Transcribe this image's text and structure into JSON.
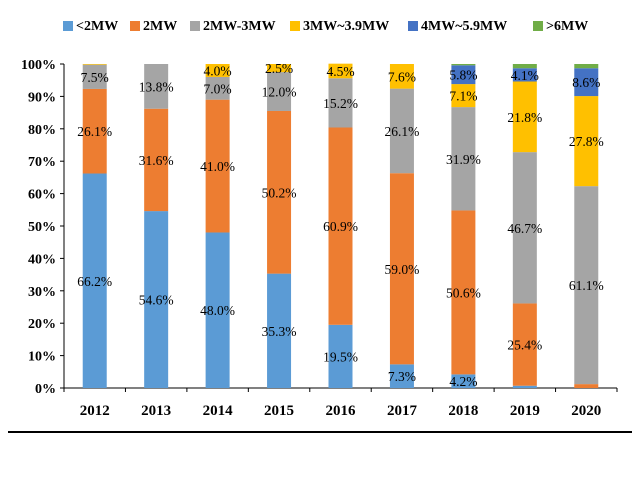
{
  "chart_data": {
    "type": "bar",
    "stacked": true,
    "title": "",
    "xlabel": "",
    "ylabel": "",
    "ylim": [
      0,
      100
    ],
    "y_ticks": [
      "0%",
      "10%",
      "20%",
      "30%",
      "40%",
      "50%",
      "60%",
      "70%",
      "80%",
      "90%",
      "100%"
    ],
    "grid": false,
    "legend_position": "top",
    "categories": [
      "2012",
      "2013",
      "2014",
      "2015",
      "2016",
      "2017",
      "2018",
      "2019",
      "2020"
    ],
    "series": [
      {
        "name": "<2MW",
        "color": "#5B9BD5",
        "values": [
          66.2,
          54.6,
          48.0,
          35.3,
          19.5,
          7.3,
          4.2,
          0.7,
          0.0
        ],
        "labels": [
          "66.2%",
          "54.6%",
          "48.0%",
          "35.3%",
          "19.5%",
          "7.3%",
          "4.2%",
          "",
          ""
        ]
      },
      {
        "name": "2MW",
        "color": "#ED7D31",
        "values": [
          26.1,
          31.6,
          41.0,
          50.2,
          60.9,
          59.0,
          50.6,
          25.4,
          1.2
        ],
        "labels": [
          "26.1%",
          "31.6%",
          "41.0%",
          "50.2%",
          "60.9%",
          "59.0%",
          "50.6%",
          "25.4%",
          ""
        ]
      },
      {
        "name": "2MW-3MW",
        "color": "#A5A5A5",
        "values": [
          7.5,
          13.8,
          7.0,
          12.0,
          15.2,
          26.1,
          31.9,
          46.7,
          61.1
        ],
        "labels": [
          "7.5%",
          "13.8%",
          "7.0%",
          "12.0%",
          "15.2%",
          "26.1%",
          "31.9%",
          "46.7%",
          "61.1%"
        ]
      },
      {
        "name": "3MW~3.9MW",
        "color": "#FFC000",
        "values": [
          0.2,
          0.0,
          4.0,
          2.5,
          4.5,
          7.6,
          7.1,
          21.8,
          27.8
        ],
        "labels": [
          "",
          "",
          "4.0%",
          "2.5%",
          "4.5%",
          "7.6%",
          "7.1%",
          "21.8%",
          "27.8%"
        ]
      },
      {
        "name": "4MW~5.9MW",
        "color": "#4472C4",
        "values": [
          0.0,
          0.0,
          0.0,
          0.0,
          0.0,
          0.0,
          5.8,
          4.1,
          8.6
        ],
        "labels": [
          "",
          "",
          "",
          "",
          "",
          "",
          "5.8%",
          "4.1%",
          "8.6%"
        ]
      },
      {
        "name": ">6MW",
        "color": "#70AD47",
        "values": [
          0.0,
          0.0,
          0.0,
          0.0,
          0.0,
          0.0,
          0.4,
          1.3,
          1.3
        ],
        "labels": [
          "",
          "",
          "",
          "",
          "",
          "",
          "",
          "",
          ""
        ]
      }
    ]
  }
}
